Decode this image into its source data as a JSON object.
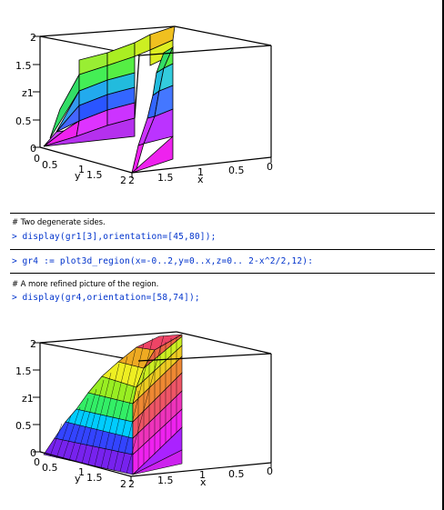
{
  "worksheet": {
    "plot1": {
      "z_ticks": [
        "2",
        "1.5",
        "z1",
        "0.5",
        "0"
      ],
      "y_ticks": [
        "0",
        "0.5",
        "1",
        "y",
        "1.5",
        "2"
      ],
      "x_ticks": [
        "2",
        "1.5",
        "1",
        "x",
        "0.5",
        "0"
      ]
    },
    "comment1": "# Two degenerate sides.",
    "cmd1_prompt": ">",
    "cmd1": "display(gr1[3],orientation=[45,80]);",
    "cmd2_prompt": ">",
    "cmd2": "gr4 := plot3d_region(x=-0..2,y=0..x,z=0.. 2-x^2/2,12):",
    "comment2": "# A more refined picture of the region.",
    "cmd3_prompt": ">",
    "cmd3": "display(gr4,orientation=[58,74]);",
    "plot2": {
      "z_ticks": [
        "2",
        "1.5",
        "z1",
        "0.5",
        "0"
      ],
      "y_ticks": [
        "0",
        "0.5",
        "1",
        "y",
        "1.5",
        "2"
      ],
      "x_ticks": [
        "2",
        "1.5",
        "1",
        "x",
        "0.5",
        "0"
      ]
    }
  }
}
